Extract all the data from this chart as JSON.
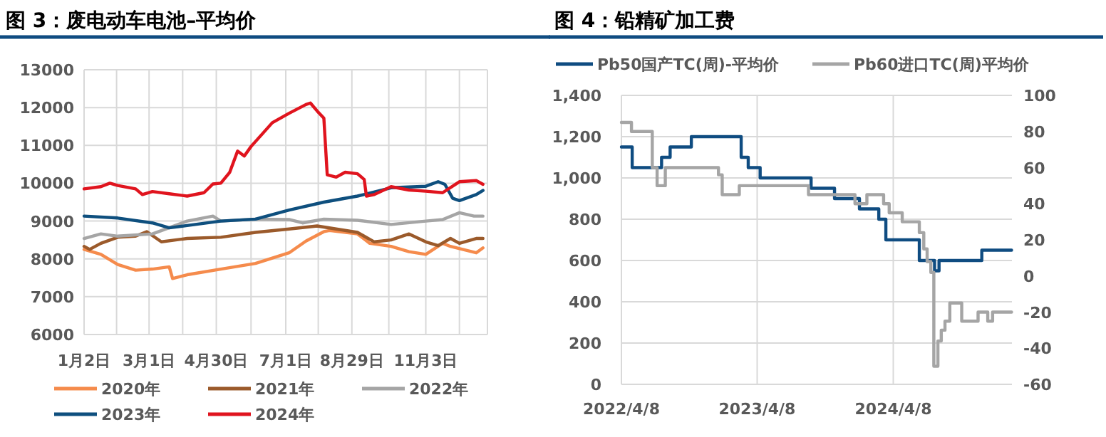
{
  "chart_data": [
    {
      "type": "line",
      "title": "图 3：废电动车电池–平均价",
      "grid": true,
      "legend": "bottom",
      "xlim": [
        "--01-02",
        "--12-28"
      ],
      "xticks": [
        {
          "value": "--01-02",
          "label": "1月2日"
        },
        {
          "value": "--01-31",
          "label": null
        },
        {
          "value": "--03-01",
          "label": "3月1日"
        },
        {
          "value": "--03-31",
          "label": null
        },
        {
          "value": "--04-30",
          "label": "4月30日"
        },
        {
          "value": "--05-31",
          "label": null
        },
        {
          "value": "--07-01",
          "label": "7月1日"
        },
        {
          "value": "--07-30",
          "label": null
        },
        {
          "value": "--08-29",
          "label": "8月29日"
        },
        {
          "value": "--10-01",
          "label": null
        },
        {
          "value": "--11-03",
          "label": "11月3日"
        },
        {
          "value": "--12-03",
          "label": null
        }
      ],
      "ylim": [
        6000,
        13000
      ],
      "yticks": [
        6000,
        7000,
        8000,
        9000,
        10000,
        11000,
        12000,
        13000
      ],
      "series": [
        {
          "name": "2020年",
          "color": "#f58b4c",
          "x": [
            "--01-02",
            "--01-17",
            "--02-01",
            "--02-17",
            "--03-04",
            "--03-19",
            "--03-22",
            "--04-04",
            "--05-04",
            "--06-04",
            "--07-04",
            "--07-19",
            "--08-04",
            "--08-09",
            "--09-03",
            "--09-14",
            "--10-03",
            "--10-19",
            "--11-03",
            "--11-18",
            "--11-25",
            "--12-18",
            "--12-24"
          ],
          "values": [
            8250,
            8120,
            7850,
            7700,
            7730,
            7790,
            7480,
            7580,
            7730,
            7880,
            8160,
            8470,
            8720,
            8750,
            8660,
            8410,
            8330,
            8190,
            8120,
            8410,
            8330,
            8160,
            8290
          ]
        },
        {
          "name": "2021年",
          "color": "#9b5a2b",
          "x": [
            "--01-02",
            "--01-07",
            "--01-17",
            "--02-01",
            "--02-17",
            "--02-27",
            "--03-12",
            "--04-04",
            "--05-04",
            "--06-04",
            "--07-04",
            "--07-29",
            "--09-03",
            "--09-18",
            "--10-03",
            "--10-19",
            "--11-03",
            "--11-14",
            "--11-25",
            "--12-03",
            "--12-18",
            "--12-24"
          ],
          "values": [
            8330,
            8250,
            8410,
            8570,
            8600,
            8720,
            8450,
            8540,
            8570,
            8700,
            8790,
            8870,
            8700,
            8450,
            8500,
            8660,
            8450,
            8350,
            8540,
            8410,
            8540,
            8540
          ]
        },
        {
          "name": "2022年",
          "color": "#a5a5a5",
          "x": [
            "--01-02",
            "--01-17",
            "--02-01",
            "--03-04",
            "--04-04",
            "--04-27",
            "--05-04",
            "--06-04",
            "--07-04",
            "--07-16",
            "--08-04",
            "--09-03",
            "--10-03",
            "--11-03",
            "--11-18",
            "--12-03",
            "--12-16",
            "--12-24"
          ],
          "values": [
            8540,
            8660,
            8600,
            8660,
            9000,
            9130,
            9000,
            9050,
            9040,
            8950,
            9050,
            9020,
            8910,
            9000,
            9040,
            9220,
            9130,
            9130
          ]
        },
        {
          "name": "2023年",
          "color": "#0e4f7e",
          "x": [
            "--01-02",
            "--02-01",
            "--03-04",
            "--03-19",
            "--04-04",
            "--05-04",
            "--06-04",
            "--07-04",
            "--08-04",
            "--09-03",
            "--10-03",
            "--11-03",
            "--11-14",
            "--11-20",
            "--11-27",
            "--12-03",
            "--12-18",
            "--12-24"
          ],
          "values": [
            9130,
            9080,
            8950,
            8820,
            8880,
            9000,
            9050,
            9290,
            9500,
            9660,
            9880,
            9920,
            10040,
            9970,
            9600,
            9540,
            9700,
            9810
          ]
        },
        {
          "name": "2024年",
          "color": "#e0141e",
          "x": [
            "--01-02",
            "--01-17",
            "--01-25",
            "--02-01",
            "--02-17",
            "--02-23",
            "--03-04",
            "--03-19",
            "--04-04",
            "--04-19",
            "--04-27",
            "--05-04",
            "--05-12",
            "--05-19",
            "--05-25",
            "--05-31",
            "--06-19",
            "--07-04",
            "--07-19",
            "--07-23",
            "--07-29",
            "--08-04",
            "--08-07",
            "--08-15",
            "--08-23",
            "--09-03",
            "--09-09",
            "--09-11",
            "--09-18",
            "--10-03",
            "--10-19",
            "--11-03",
            "--11-18",
            "--12-03",
            "--12-18",
            "--12-24"
          ],
          "values": [
            9850,
            9910,
            10000,
            9940,
            9850,
            9700,
            9780,
            9720,
            9660,
            9750,
            9980,
            10000,
            10290,
            10850,
            10720,
            10970,
            11600,
            11850,
            12080,
            12120,
            11910,
            11720,
            10220,
            10160,
            10290,
            10250,
            10100,
            9660,
            9700,
            9910,
            9820,
            9790,
            9750,
            10040,
            10070,
            9970
          ]
        }
      ]
    },
    {
      "type": "step",
      "title": "图 4：铅精矿加工费",
      "grid": true,
      "legend": "top",
      "xlim": [
        "2022-04-08",
        "2025-02-21"
      ],
      "xticks": [
        {
          "value": "2022-04-08",
          "label": "2022/4/8"
        },
        {
          "value": "2023-04-08",
          "label": "2023/4/8"
        },
        {
          "value": "2024-04-08",
          "label": "2024/4/8"
        }
      ],
      "ylim": [
        0,
        1400
      ],
      "yticks": [
        0,
        {
          "value": 200,
          "label": "200"
        },
        {
          "value": 400,
          "label": "400"
        },
        {
          "value": 600,
          "label": "600"
        },
        {
          "value": 800,
          "label": "800"
        },
        {
          "value": 1000,
          "label": "1,000"
        },
        {
          "value": 1200,
          "label": "1,200"
        },
        {
          "value": 1400,
          "label": "1,400"
        }
      ],
      "y2lim": [
        -60,
        100
      ],
      "y2ticks": [
        -60,
        -40,
        -20,
        0,
        20,
        40,
        60,
        80,
        100
      ],
      "series": [
        {
          "name": "Pb50国产TC(周)-平均价",
          "color": "#0f4c81",
          "x": [
            "2022-04-08",
            "2022-05-07",
            "2022-07-25",
            "2022-08-17",
            "2022-10-13",
            "2023-02-24",
            "2023-03-15",
            "2023-04-16",
            "2023-08-31",
            "2023-11-02",
            "2024-01-08",
            "2024-02-29",
            "2024-03-19",
            "2024-06-17",
            "2024-07-28",
            "2024-08-09",
            "2024-12-02",
            "2025-02-20"
          ],
          "values": [
            1150,
            1050,
            1100,
            1150,
            1200,
            1100,
            1050,
            1000,
            950,
            900,
            850,
            800,
            700,
            600,
            550,
            600,
            650,
            650
          ]
        },
        {
          "name": "Pb60进口TC(周)平均价",
          "color": "#a5a5a5",
          "axis": "y2",
          "x": [
            "2022-04-08",
            "2022-05-05",
            "2022-06-30",
            "2022-07-13",
            "2022-08-04",
            "2022-12-25",
            "2023-01-04",
            "2023-02-19",
            "2023-08-24",
            "2023-12-27",
            "2024-01-28",
            "2024-03-13",
            "2024-03-28",
            "2024-05-02",
            "2024-06-17",
            "2024-06-29",
            "2024-07-08",
            "2024-07-18",
            "2024-07-26",
            "2024-08-06",
            "2024-08-15",
            "2024-08-25",
            "2024-09-07",
            "2024-10-09",
            "2024-11-22",
            "2024-12-18",
            "2024-12-31",
            "2025-02-20"
          ],
          "values": [
            85,
            80,
            60,
            50,
            60,
            56,
            45,
            50,
            45,
            40,
            45,
            40,
            35,
            30,
            24,
            15,
            8,
            2,
            -50,
            -36,
            -30,
            -25,
            -15,
            -25,
            -20,
            -25,
            -20,
            -20
          ]
        }
      ]
    }
  ]
}
